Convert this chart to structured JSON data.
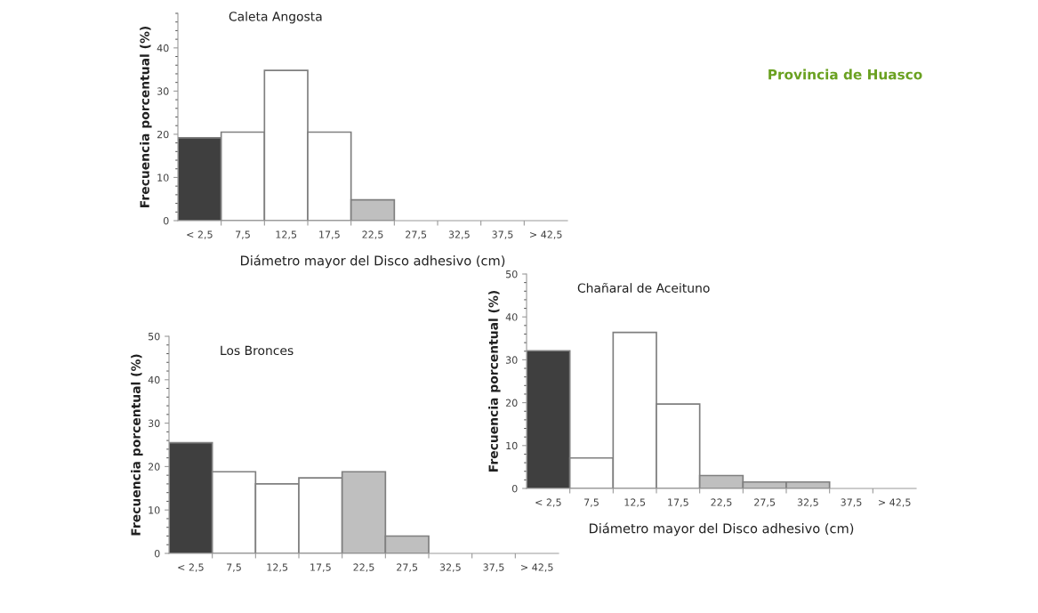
{
  "chart_data": [
    {
      "type": "bar",
      "title": "Caleta Angosta",
      "xlabel": "Diámetro mayor del Disco adhesivo (cm)",
      "ylabel": "Frecuencia porcentual (%)",
      "annotations": [
        "Provincia de Huasco"
      ],
      "categories": [
        "< 2,5",
        "7,5",
        "12,5",
        "17,5",
        "22,5",
        "27,5",
        "32,5",
        "37,5",
        "> 42,5"
      ],
      "values": [
        19.2,
        20.5,
        34.8,
        20.5,
        4.8,
        0,
        0,
        0,
        0
      ],
      "colors": [
        "#3f3f3f",
        "#ffffff",
        "#ffffff",
        "#ffffff",
        "#bfbfbf",
        "#ffffff",
        "#ffffff",
        "#ffffff",
        "#ffffff"
      ],
      "ylim": [
        0,
        48
      ],
      "yticks": [
        0,
        10,
        20,
        30,
        40
      ],
      "grid": false,
      "legend": false
    },
    {
      "type": "bar",
      "title": "Los Bronces",
      "ylabel": "Frecuencia porcentual (%)",
      "categories": [
        "< 2,5",
        "7,5",
        "12,5",
        "17,5",
        "22,5",
        "27,5",
        "32,5",
        "37,5",
        "> 42,5"
      ],
      "values": [
        25.5,
        18.8,
        16,
        17.4,
        18.8,
        4,
        0,
        0,
        0
      ],
      "colors": [
        "#3f3f3f",
        "#ffffff",
        "#ffffff",
        "#ffffff",
        "#bfbfbf",
        "#bfbfbf",
        "#ffffff",
        "#ffffff",
        "#ffffff"
      ],
      "ylim": [
        0,
        50
      ],
      "yticks": [
        0,
        10,
        20,
        30,
        40,
        50
      ],
      "grid": false,
      "legend": false
    },
    {
      "type": "bar",
      "title": "Chañaral de Aceituno",
      "xlabel": "Diámetro mayor del Disco adhesivo (cm)",
      "ylabel": "Frecuencia porcentual (%)",
      "categories": [
        "< 2,5",
        "7,5",
        "12,5",
        "17,5",
        "22,5",
        "27,5",
        "32,5",
        "37,5",
        "> 42,5"
      ],
      "values": [
        32.1,
        7.1,
        36.4,
        19.7,
        3,
        1.5,
        1.5,
        0,
        0
      ],
      "colors": [
        "#3f3f3f",
        "#ffffff",
        "#ffffff",
        "#ffffff",
        "#bfbfbf",
        "#bfbfbf",
        "#bfbfbf",
        "#ffffff",
        "#ffffff"
      ],
      "ylim": [
        0,
        50
      ],
      "yticks": [
        0,
        10,
        20,
        30,
        40,
        50
      ],
      "grid": false,
      "legend": false
    }
  ]
}
